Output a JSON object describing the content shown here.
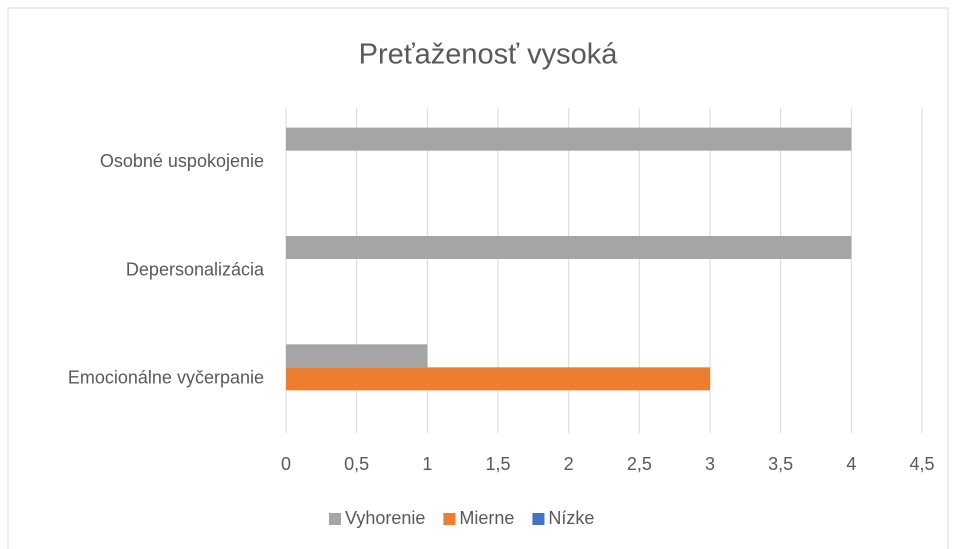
{
  "chart_data": {
    "type": "hbar",
    "title": "Preťaženosť vysoká",
    "categories": [
      "Emocionálne vyčerpanie",
      "Depersonalizácia",
      "Osobné uspokojenie"
    ],
    "series": [
      {
        "name": "Vyhorenie",
        "color": "#a5a5a5",
        "values": [
          1,
          4,
          4
        ]
      },
      {
        "name": "Mierne",
        "color": "#ed7d31",
        "values": [
          3,
          0,
          0
        ]
      },
      {
        "name": "Nízke",
        "color": "#4472c4",
        "values": [
          0,
          0,
          0
        ]
      }
    ],
    "xlim": [
      0,
      4.5
    ],
    "xticks": [
      0,
      {
        "value": 0.5,
        "label": "0,5"
      },
      1,
      {
        "value": 1.5,
        "label": "1,5"
      },
      2,
      {
        "value": 2.5,
        "label": "2,5"
      },
      3,
      {
        "value": 3.5,
        "label": "3,5"
      },
      4,
      {
        "value": 4.5,
        "label": "4,5"
      }
    ],
    "grid": true,
    "legend": "bottom"
  }
}
